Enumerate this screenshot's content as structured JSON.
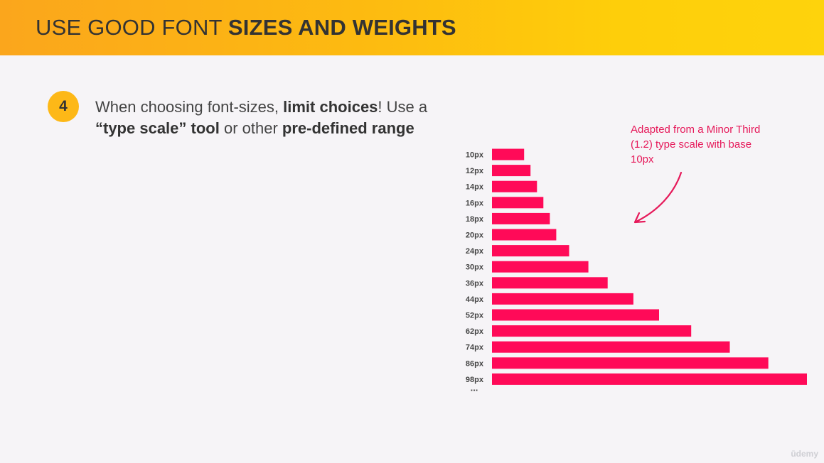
{
  "header": {
    "title_regular": "USE GOOD FONT ",
    "title_bold": "SIZES AND WEIGHTS"
  },
  "tip": {
    "number": "4",
    "seg1": "When choosing font-sizes, ",
    "seg2": "limit choices",
    "seg3": "! Use a ",
    "seg4": "“type scale” tool",
    "seg5": " or other ",
    "seg6": "pre-defined range"
  },
  "annotation": {
    "text": "Adapted from a Minor Third (1.2) type scale with base 10px"
  },
  "chart_data": {
    "type": "bar",
    "orientation": "horizontal",
    "categories": [
      "10px",
      "12px",
      "14px",
      "16px",
      "18px",
      "20px",
      "24px",
      "30px",
      "36px",
      "44px",
      "52px",
      "62px",
      "74px",
      "86px",
      "98px"
    ],
    "values": [
      10,
      12,
      14,
      16,
      18,
      20,
      24,
      30,
      36,
      44,
      52,
      62,
      74,
      86,
      98
    ],
    "continuation_label": "...",
    "bar_color": "#ff0a58",
    "title": "",
    "xlabel": "",
    "ylabel": ""
  },
  "watermark": {
    "text": "ūdemy"
  },
  "colors": {
    "accent": "#fdb817",
    "bar": "#ff0a58",
    "annotation": "#e6195a"
  }
}
